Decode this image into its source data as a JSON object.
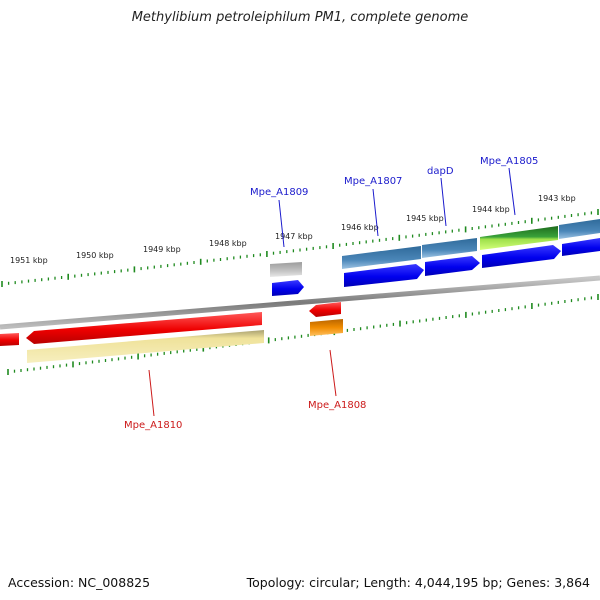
{
  "title": "Methylibium petroleiphilum PM1, complete genome",
  "footer": {
    "accession": "Accession: NC_008825",
    "summary": "Topology: circular; Length: 4,044,195 bp; Genes: 3,864"
  },
  "ruler_labels": [
    "1951 kbp",
    "1950 kbp",
    "1949 kbp",
    "1948 kbp",
    "1947 kbp",
    "1946 kbp",
    "1945 kbp",
    "1944 kbp",
    "1943 kbp"
  ],
  "gene_labels_forward": [
    "Mpe_A1809",
    "Mpe_A1807",
    "dapD",
    "Mpe_A1805"
  ],
  "gene_labels_reverse": [
    "Mpe_A1810",
    "Mpe_A1808"
  ],
  "colors": {
    "backbone": "#8a8a8a",
    "ticks": "#1f8a1f",
    "forward_label": "#1a1acc",
    "reverse_label": "#cc1a1a",
    "cds_forward": "#0000ee",
    "cds_reverse": "#ee0000",
    "gene_steelblue": "#4a86b8",
    "gene_grey": "#bdbdbd",
    "gene_green": "#2e8b2e",
    "gene_lightgreen": "#b7f05a",
    "gene_khaki": "#efe29a",
    "gene_orange": "#f08c00"
  }
}
